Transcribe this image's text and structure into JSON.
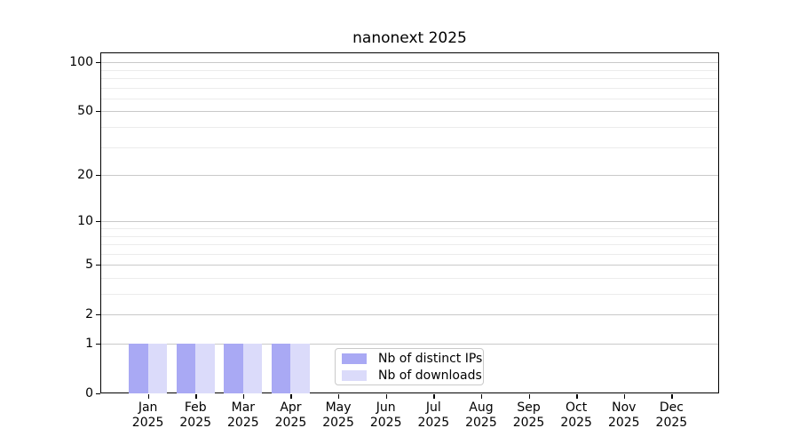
{
  "chart_data": {
    "type": "bar",
    "title": "nanonext 2025",
    "categories": [
      "Jan",
      "Feb",
      "Mar",
      "Apr",
      "May",
      "Jun",
      "Jul",
      "Aug",
      "Sep",
      "Oct",
      "Nov",
      "Dec"
    ],
    "year": "2025",
    "series": [
      {
        "name": "Nb of distinct IPs",
        "color": "#a9a9f4",
        "values": [
          1,
          1,
          1,
          1,
          0,
          0,
          0,
          0,
          0,
          0,
          0,
          0
        ]
      },
      {
        "name": "Nb of downloads",
        "color": "#dbdbfa",
        "values": [
          1,
          1,
          1,
          1,
          0,
          0,
          0,
          0,
          0,
          0,
          0,
          0
        ]
      }
    ],
    "yscale": "log1p",
    "ylim": [
      0,
      115
    ],
    "yticks": [
      100,
      50,
      20,
      10,
      5,
      2,
      1,
      0
    ],
    "minor_gridlines": [
      90,
      80,
      70,
      60,
      40,
      30,
      9,
      8,
      7,
      6,
      4,
      3
    ],
    "grid": true,
    "legend_position": "lower center",
    "colors": {
      "major_grid": "#c9c9c9",
      "minor_grid": "#ececec",
      "axis": "#000000",
      "background": "#ffffff"
    }
  }
}
